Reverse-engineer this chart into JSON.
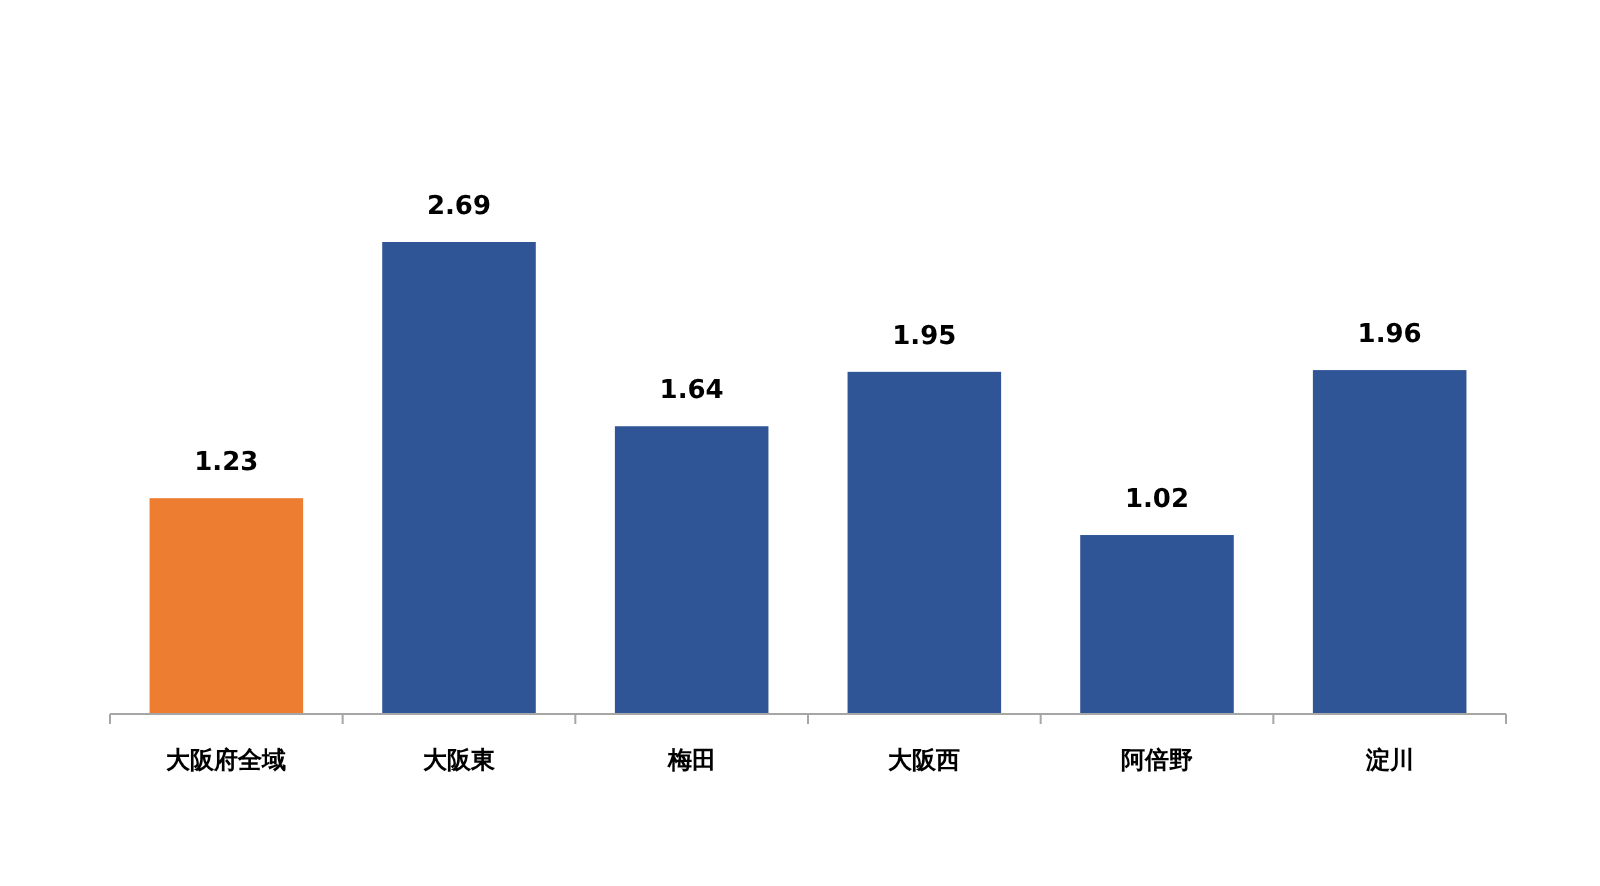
{
  "chart_data": {
    "type": "bar",
    "categories": [
      "大阪府全域",
      "大阪東",
      "梅田",
      "大阪西",
      "阿倍野",
      "淀川"
    ],
    "values": [
      1.23,
      2.69,
      1.64,
      1.95,
      1.02,
      1.96
    ],
    "colors": [
      "#ed7d31",
      "#2f5597",
      "#2f5597",
      "#2f5597",
      "#2f5597",
      "#2f5597"
    ],
    "data_labels": true
  }
}
